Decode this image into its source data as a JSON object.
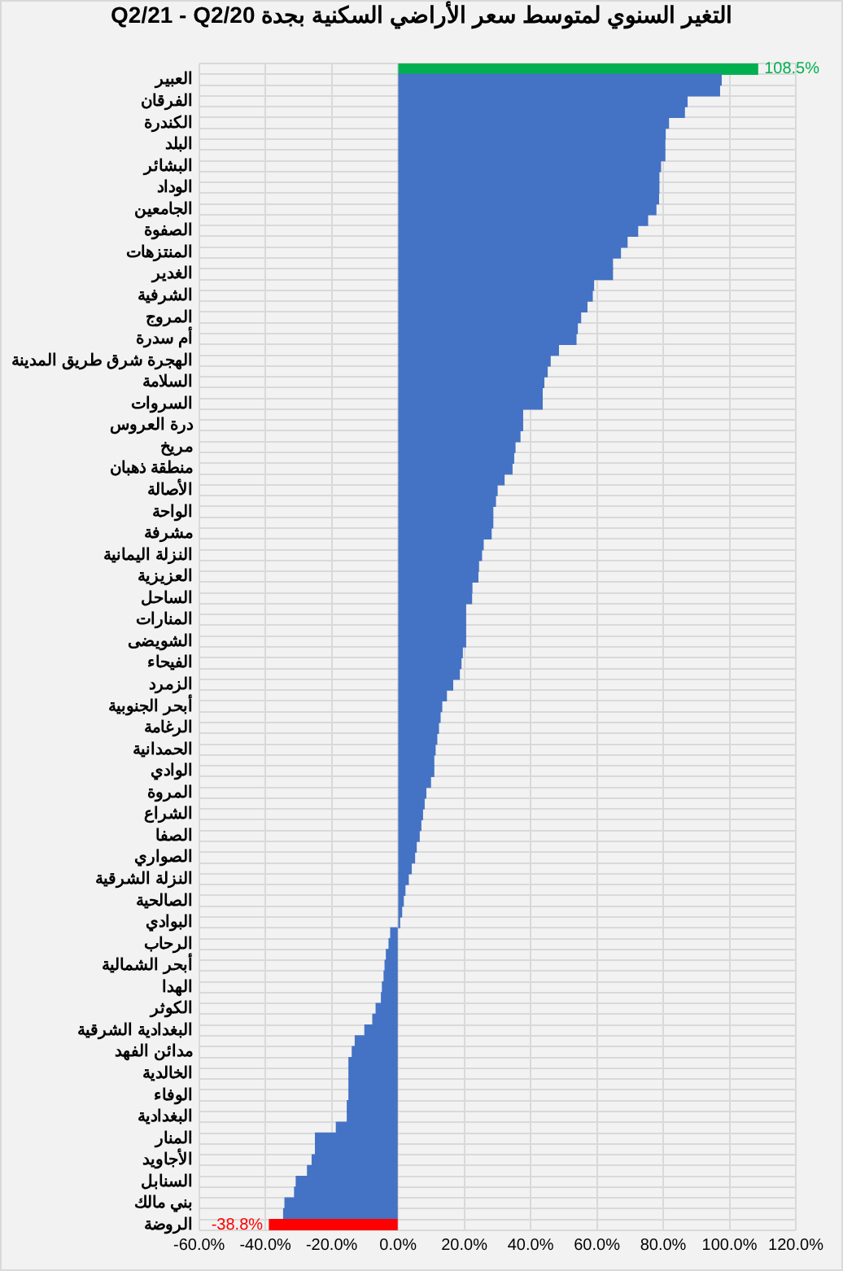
{
  "chart_data": {
    "type": "bar",
    "orientation": "horizontal",
    "title": "التغير السنوي لمتوسط سعر الأراضي السكنية بجدة Q2/21 - Q2/20",
    "categories": [
      null,
      "العبير",
      null,
      "الفرقان",
      null,
      "الكندرة",
      null,
      "البلد",
      null,
      "البشائر",
      null,
      "الوداد",
      null,
      "الجامعين",
      null,
      "الصفوة",
      null,
      "المنتزهات",
      null,
      "الغدير",
      null,
      "الشرفية",
      null,
      "المروج",
      null,
      "أم سدرة",
      null,
      "الهجرة شرق طريق المدينة",
      null,
      "السلامة",
      null,
      "السروات",
      null,
      "درة العروس",
      null,
      "مريخ",
      null,
      "منطقة ذهبان",
      null,
      "الأصالة",
      null,
      "الواحة",
      null,
      "مشرفة",
      null,
      "النزلة اليمانية",
      null,
      "العزيزية",
      null,
      "الساحل",
      null,
      "المنارات",
      null,
      "الشويضى",
      null,
      "الفيحاء",
      null,
      "الزمرد",
      null,
      "أبحر الجنوبية",
      null,
      "الرغامة",
      null,
      "الحمدانية",
      null,
      "الوادي",
      null,
      "المروة",
      null,
      "الشراع",
      null,
      "الصفا",
      null,
      "الصواري",
      null,
      "النزلة الشرقية",
      null,
      "الصالحية",
      null,
      "البوادي",
      null,
      "الرحاب",
      null,
      "أبحر الشمالية",
      null,
      "الهدا",
      null,
      "الكوثر",
      null,
      "البغدادية الشرقية",
      null,
      "مدائن الفهد",
      null,
      "الخالدية",
      null,
      "الوفاء",
      null,
      "البغدادية",
      null,
      "المنار",
      null,
      "الأجاويد",
      null,
      "السنابل",
      null,
      "بني مالك",
      null,
      "الروضة"
    ],
    "values": [
      108.5,
      97.5,
      97.0,
      87.2,
      86.4,
      81.6,
      80.6,
      80.5,
      80.5,
      79.2,
      78.7,
      78.7,
      78.6,
      77.8,
      75.3,
      72.3,
      69.1,
      67.1,
      64.7,
      64.7,
      59.0,
      58.6,
      57.0,
      55.1,
      54.1,
      53.7,
      48.4,
      45.9,
      45.0,
      44.0,
      43.5,
      43.5,
      37.6,
      37.6,
      36.8,
      35.3,
      34.9,
      34.4,
      32.0,
      29.9,
      29.4,
      28.6,
      28.6,
      28.1,
      25.7,
      25.2,
      24.3,
      24.1,
      22.3,
      22.2,
      20.4,
      20.4,
      20.4,
      20.4,
      19.4,
      19.0,
      18.5,
      16.5,
      14.6,
      13.2,
      12.7,
      12.2,
      11.7,
      11.2,
      10.8,
      10.8,
      9.8,
      8.4,
      7.9,
      7.4,
      6.9,
      6.4,
      5.5,
      5.0,
      4.0,
      3.1,
      2.1,
      1.6,
      1.1,
      0.5,
      -2.2,
      -2.7,
      -3.5,
      -3.9,
      -4.2,
      -4.7,
      -5.0,
      -6.6,
      -7.6,
      -10.0,
      -12.9,
      -13.8,
      -14.8,
      -14.8,
      -14.8,
      -14.8,
      -15.3,
      -15.3,
      -18.6,
      -24.9,
      -24.9,
      -25.9,
      -27.3,
      -30.7,
      -31.2,
      -34.1,
      -34.5,
      -38.8
    ],
    "colors": [
      "#00b050",
      "#4472c4",
      "#4472c4",
      "#4472c4",
      "#4472c4",
      "#4472c4",
      "#4472c4",
      "#4472c4",
      "#4472c4",
      "#4472c4",
      "#4472c4",
      "#4472c4",
      "#4472c4",
      "#4472c4",
      "#4472c4",
      "#4472c4",
      "#4472c4",
      "#4472c4",
      "#4472c4",
      "#4472c4",
      "#4472c4",
      "#4472c4",
      "#4472c4",
      "#4472c4",
      "#4472c4",
      "#4472c4",
      "#4472c4",
      "#4472c4",
      "#4472c4",
      "#4472c4",
      "#4472c4",
      "#4472c4",
      "#4472c4",
      "#4472c4",
      "#4472c4",
      "#4472c4",
      "#4472c4",
      "#4472c4",
      "#4472c4",
      "#4472c4",
      "#4472c4",
      "#4472c4",
      "#4472c4",
      "#4472c4",
      "#4472c4",
      "#4472c4",
      "#4472c4",
      "#4472c4",
      "#4472c4",
      "#4472c4",
      "#4472c4",
      "#4472c4",
      "#4472c4",
      "#4472c4",
      "#4472c4",
      "#4472c4",
      "#4472c4",
      "#4472c4",
      "#4472c4",
      "#4472c4",
      "#4472c4",
      "#4472c4",
      "#4472c4",
      "#4472c4",
      "#4472c4",
      "#4472c4",
      "#4472c4",
      "#4472c4",
      "#4472c4",
      "#4472c4",
      "#4472c4",
      "#4472c4",
      "#4472c4",
      "#4472c4",
      "#4472c4",
      "#4472c4",
      "#4472c4",
      "#4472c4",
      "#4472c4",
      "#4472c4",
      "#4472c4",
      "#4472c4",
      "#4472c4",
      "#4472c4",
      "#4472c4",
      "#4472c4",
      "#4472c4",
      "#4472c4",
      "#4472c4",
      "#4472c4",
      "#4472c4",
      "#4472c4",
      "#4472c4",
      "#4472c4",
      "#4472c4",
      "#4472c4",
      "#4472c4",
      "#4472c4",
      "#4472c4",
      "#4472c4",
      "#4472c4",
      "#4472c4",
      "#4472c4",
      "#4472c4",
      "#4472c4",
      "#4472c4",
      "#4472c4",
      "#ff0000"
    ],
    "value_labels": [
      "108.5%",
      null,
      null,
      null,
      null,
      null,
      null,
      null,
      null,
      null,
      null,
      null,
      null,
      null,
      null,
      null,
      null,
      null,
      null,
      null,
      null,
      null,
      null,
      null,
      null,
      null,
      null,
      null,
      null,
      null,
      null,
      null,
      null,
      null,
      null,
      null,
      null,
      null,
      null,
      null,
      null,
      null,
      null,
      null,
      null,
      null,
      null,
      null,
      null,
      null,
      null,
      null,
      null,
      null,
      null,
      null,
      null,
      null,
      null,
      null,
      null,
      null,
      null,
      null,
      null,
      null,
      null,
      null,
      null,
      null,
      null,
      null,
      null,
      null,
      null,
      null,
      null,
      null,
      null,
      null,
      null,
      null,
      null,
      null,
      null,
      null,
      null,
      null,
      null,
      null,
      null,
      null,
      null,
      null,
      null,
      null,
      null,
      null,
      null,
      null,
      null,
      null,
      null,
      null,
      null,
      null,
      null,
      "-38.8%"
    ],
    "xlim": [
      -60,
      120
    ],
    "xticks": [
      {
        "value": -60,
        "label": "-60.0%"
      },
      {
        "value": -40,
        "label": "-40.0%"
      },
      {
        "value": -20,
        "label": "-20.0%"
      },
      {
        "value": 0,
        "label": "0.0%"
      },
      {
        "value": 20,
        "label": "20.0%"
      },
      {
        "value": 40,
        "label": "40.0%"
      },
      {
        "value": 60,
        "label": "60.0%"
      },
      {
        "value": 80,
        "label": "80.0%"
      },
      {
        "value": 100,
        "label": "100.0%"
      },
      {
        "value": 120,
        "label": "120.0%"
      }
    ],
    "grid": true
  }
}
